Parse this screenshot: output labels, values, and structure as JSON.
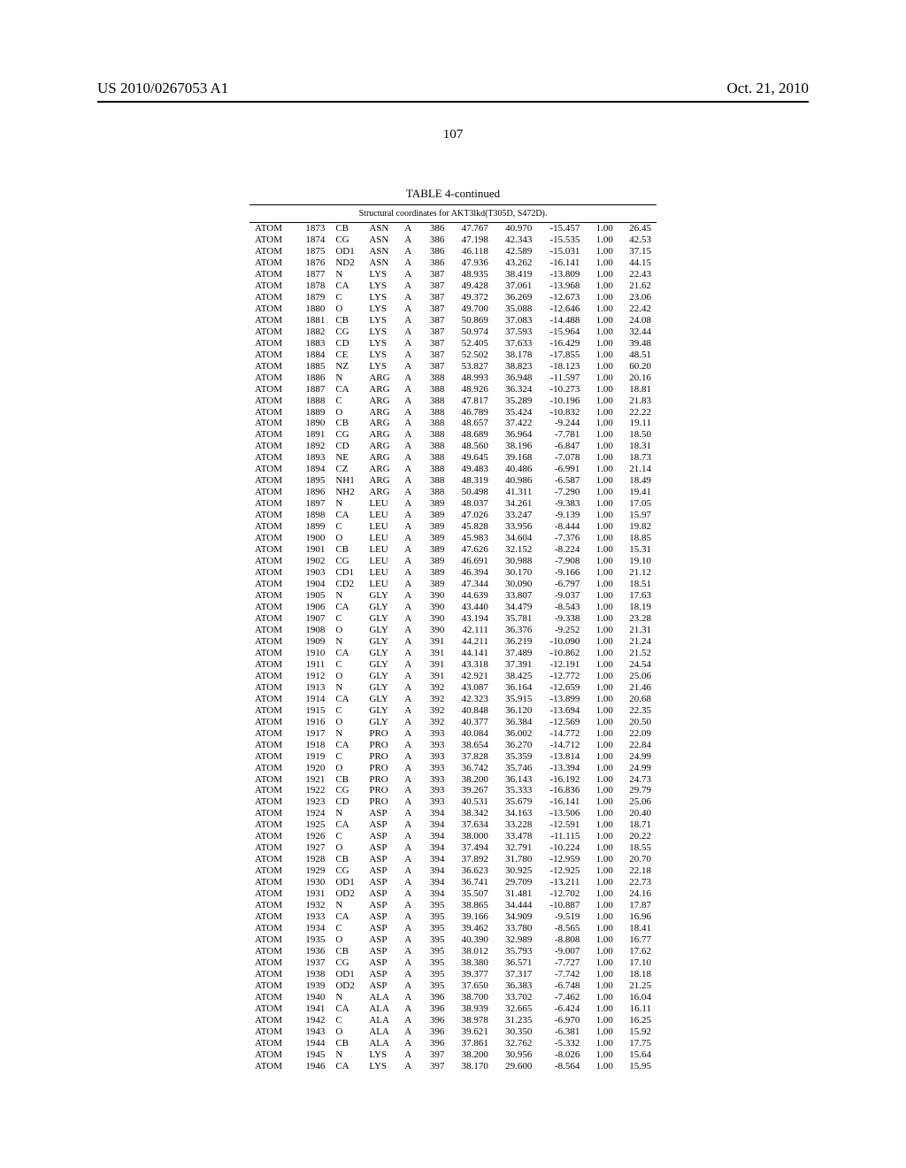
{
  "header": {
    "pub_number": "US 2010/0267053 A1",
    "pub_date": "Oct. 21, 2010"
  },
  "page_number": "107",
  "table": {
    "caption": "TABLE 4-continued",
    "subtitle": "Structural coordinates for AKT3lkd(T305D, S472D).",
    "font_size": 11,
    "colors": {
      "text": "#000000",
      "background": "#ffffff",
      "rule": "#000000"
    },
    "rows": [
      [
        "ATOM",
        "1873",
        "CB",
        "ASN",
        "A",
        "386",
        "47.767",
        "40.970",
        "-15.457",
        "1.00",
        "26.45"
      ],
      [
        "ATOM",
        "1874",
        "CG",
        "ASN",
        "A",
        "386",
        "47.198",
        "42.343",
        "-15.535",
        "1.00",
        "42.53"
      ],
      [
        "ATOM",
        "1875",
        "OD1",
        "ASN",
        "A",
        "386",
        "46.118",
        "42.589",
        "-15.031",
        "1.00",
        "37.15"
      ],
      [
        "ATOM",
        "1876",
        "ND2",
        "ASN",
        "A",
        "386",
        "47.936",
        "43.262",
        "-16.141",
        "1.00",
        "44.15"
      ],
      [
        "ATOM",
        "1877",
        "N",
        "LYS",
        "A",
        "387",
        "48.935",
        "38.419",
        "-13.809",
        "1.00",
        "22.43"
      ],
      [
        "ATOM",
        "1878",
        "CA",
        "LYS",
        "A",
        "387",
        "49.428",
        "37.061",
        "-13.968",
        "1.00",
        "21.62"
      ],
      [
        "ATOM",
        "1879",
        "C",
        "LYS",
        "A",
        "387",
        "49.372",
        "36.269",
        "-12.673",
        "1.00",
        "23.06"
      ],
      [
        "ATOM",
        "1880",
        "O",
        "LYS",
        "A",
        "387",
        "49.700",
        "35.088",
        "-12.646",
        "1.00",
        "22.42"
      ],
      [
        "ATOM",
        "1881",
        "CB",
        "LYS",
        "A",
        "387",
        "50.869",
        "37.083",
        "-14.488",
        "1.00",
        "24.08"
      ],
      [
        "ATOM",
        "1882",
        "CG",
        "LYS",
        "A",
        "387",
        "50.974",
        "37.593",
        "-15.964",
        "1.00",
        "32.44"
      ],
      [
        "ATOM",
        "1883",
        "CD",
        "LYS",
        "A",
        "387",
        "52.405",
        "37.633",
        "-16.429",
        "1.00",
        "39.48"
      ],
      [
        "ATOM",
        "1884",
        "CE",
        "LYS",
        "A",
        "387",
        "52.502",
        "38.178",
        "-17.855",
        "1.00",
        "48.51"
      ],
      [
        "ATOM",
        "1885",
        "NZ",
        "LYS",
        "A",
        "387",
        "53.827",
        "38.823",
        "-18.123",
        "1.00",
        "60.20"
      ],
      [
        "ATOM",
        "1886",
        "N",
        "ARG",
        "A",
        "388",
        "48.993",
        "36.948",
        "-11.597",
        "1.00",
        "20.16"
      ],
      [
        "ATOM",
        "1887",
        "CA",
        "ARG",
        "A",
        "388",
        "48.926",
        "36.324",
        "-10.273",
        "1.00",
        "18.81"
      ],
      [
        "ATOM",
        "1888",
        "C",
        "ARG",
        "A",
        "388",
        "47.817",
        "35.289",
        "-10.196",
        "1.00",
        "21.83"
      ],
      [
        "ATOM",
        "1889",
        "O",
        "ARG",
        "A",
        "388",
        "46.789",
        "35.424",
        "-10.832",
        "1.00",
        "22.22"
      ],
      [
        "ATOM",
        "1890",
        "CB",
        "ARG",
        "A",
        "388",
        "48.657",
        "37.422",
        "-9.244",
        "1.00",
        "19.11"
      ],
      [
        "ATOM",
        "1891",
        "CG",
        "ARG",
        "A",
        "388",
        "48.689",
        "36.964",
        "-7.781",
        "1.00",
        "18.50"
      ],
      [
        "ATOM",
        "1892",
        "CD",
        "ARG",
        "A",
        "388",
        "48.560",
        "38.196",
        "-6.847",
        "1.00",
        "18.31"
      ],
      [
        "ATOM",
        "1893",
        "NE",
        "ARG",
        "A",
        "388",
        "49.645",
        "39.168",
        "-7.078",
        "1.00",
        "18.73"
      ],
      [
        "ATOM",
        "1894",
        "CZ",
        "ARG",
        "A",
        "388",
        "49.483",
        "40.486",
        "-6.991",
        "1.00",
        "21.14"
      ],
      [
        "ATOM",
        "1895",
        "NH1",
        "ARG",
        "A",
        "388",
        "48.319",
        "40.986",
        "-6.587",
        "1.00",
        "18.49"
      ],
      [
        "ATOM",
        "1896",
        "NH2",
        "ARG",
        "A",
        "388",
        "50.498",
        "41.311",
        "-7.290",
        "1.00",
        "19.41"
      ],
      [
        "ATOM",
        "1897",
        "N",
        "LEU",
        "A",
        "389",
        "48.037",
        "34.261",
        "-9.383",
        "1.00",
        "17.05"
      ],
      [
        "ATOM",
        "1898",
        "CA",
        "LEU",
        "A",
        "389",
        "47.026",
        "33.247",
        "-9.139",
        "1.00",
        "15.97"
      ],
      [
        "ATOM",
        "1899",
        "C",
        "LEU",
        "A",
        "389",
        "45.828",
        "33.956",
        "-8.444",
        "1.00",
        "19.82"
      ],
      [
        "ATOM",
        "1900",
        "O",
        "LEU",
        "A",
        "389",
        "45.983",
        "34.604",
        "-7.376",
        "1.00",
        "18.85"
      ],
      [
        "ATOM",
        "1901",
        "CB",
        "LEU",
        "A",
        "389",
        "47.626",
        "32.152",
        "-8.224",
        "1.00",
        "15.31"
      ],
      [
        "ATOM",
        "1902",
        "CG",
        "LEU",
        "A",
        "389",
        "46.691",
        "30.988",
        "-7.908",
        "1.00",
        "19.10"
      ],
      [
        "ATOM",
        "1903",
        "CD1",
        "LEU",
        "A",
        "389",
        "46.394",
        "30.170",
        "-9.166",
        "1.00",
        "21.12"
      ],
      [
        "ATOM",
        "1904",
        "CD2",
        "LEU",
        "A",
        "389",
        "47.344",
        "30.090",
        "-6.797",
        "1.00",
        "18.51"
      ],
      [
        "ATOM",
        "1905",
        "N",
        "GLY",
        "A",
        "390",
        "44.639",
        "33.807",
        "-9.037",
        "1.00",
        "17.63"
      ],
      [
        "ATOM",
        "1906",
        "CA",
        "GLY",
        "A",
        "390",
        "43.440",
        "34.479",
        "-8.543",
        "1.00",
        "18.19"
      ],
      [
        "ATOM",
        "1907",
        "C",
        "GLY",
        "A",
        "390",
        "43.194",
        "35.781",
        "-9.338",
        "1.00",
        "23.28"
      ],
      [
        "ATOM",
        "1908",
        "O",
        "GLY",
        "A",
        "390",
        "42.111",
        "36.376",
        "-9.252",
        "1.00",
        "21.31"
      ],
      [
        "ATOM",
        "1909",
        "N",
        "GLY",
        "A",
        "391",
        "44.211",
        "36.219",
        "-10.090",
        "1.00",
        "21.24"
      ],
      [
        "ATOM",
        "1910",
        "CA",
        "GLY",
        "A",
        "391",
        "44.141",
        "37.489",
        "-10.862",
        "1.00",
        "21.52"
      ],
      [
        "ATOM",
        "1911",
        "C",
        "GLY",
        "A",
        "391",
        "43.318",
        "37.391",
        "-12.191",
        "1.00",
        "24.54"
      ],
      [
        "ATOM",
        "1912",
        "O",
        "GLY",
        "A",
        "391",
        "42.921",
        "38.425",
        "-12.772",
        "1.00",
        "25.06"
      ],
      [
        "ATOM",
        "1913",
        "N",
        "GLY",
        "A",
        "392",
        "43.087",
        "36.164",
        "-12.659",
        "1.00",
        "21.46"
      ],
      [
        "ATOM",
        "1914",
        "CA",
        "GLY",
        "A",
        "392",
        "42.323",
        "35.915",
        "-13.899",
        "1.00",
        "20.68"
      ],
      [
        "ATOM",
        "1915",
        "C",
        "GLY",
        "A",
        "392",
        "40.848",
        "36.120",
        "-13.694",
        "1.00",
        "22.35"
      ],
      [
        "ATOM",
        "1916",
        "O",
        "GLY",
        "A",
        "392",
        "40.377",
        "36.384",
        "-12.569",
        "1.00",
        "20.50"
      ],
      [
        "ATOM",
        "1917",
        "N",
        "PRO",
        "A",
        "393",
        "40.084",
        "36.002",
        "-14.772",
        "1.00",
        "22.09"
      ],
      [
        "ATOM",
        "1918",
        "CA",
        "PRO",
        "A",
        "393",
        "38.654",
        "36.270",
        "-14.712",
        "1.00",
        "22.84"
      ],
      [
        "ATOM",
        "1919",
        "C",
        "PRO",
        "A",
        "393",
        "37.828",
        "35.359",
        "-13.814",
        "1.00",
        "24.99"
      ],
      [
        "ATOM",
        "1920",
        "O",
        "PRO",
        "A",
        "393",
        "36.742",
        "35.746",
        "-13.394",
        "1.00",
        "24.99"
      ],
      [
        "ATOM",
        "1921",
        "CB",
        "PRO",
        "A",
        "393",
        "38.200",
        "36.143",
        "-16.192",
        "1.00",
        "24.73"
      ],
      [
        "ATOM",
        "1922",
        "CG",
        "PRO",
        "A",
        "393",
        "39.267",
        "35.333",
        "-16.836",
        "1.00",
        "29.79"
      ],
      [
        "ATOM",
        "1923",
        "CD",
        "PRO",
        "A",
        "393",
        "40.531",
        "35.679",
        "-16.141",
        "1.00",
        "25.06"
      ],
      [
        "ATOM",
        "1924",
        "N",
        "ASP",
        "A",
        "394",
        "38.342",
        "34.163",
        "-13.506",
        "1.00",
        "20.40"
      ],
      [
        "ATOM",
        "1925",
        "CA",
        "ASP",
        "A",
        "394",
        "37.634",
        "33.228",
        "-12.591",
        "1.00",
        "18.71"
      ],
      [
        "ATOM",
        "1926",
        "C",
        "ASP",
        "A",
        "394",
        "38.000",
        "33.478",
        "-11.115",
        "1.00",
        "20.22"
      ],
      [
        "ATOM",
        "1927",
        "O",
        "ASP",
        "A",
        "394",
        "37.494",
        "32.791",
        "-10.224",
        "1.00",
        "18.55"
      ],
      [
        "ATOM",
        "1928",
        "CB",
        "ASP",
        "A",
        "394",
        "37.892",
        "31.780",
        "-12.959",
        "1.00",
        "20.70"
      ],
      [
        "ATOM",
        "1929",
        "CG",
        "ASP",
        "A",
        "394",
        "36.623",
        "30.925",
        "-12.925",
        "1.00",
        "22.18"
      ],
      [
        "ATOM",
        "1930",
        "OD1",
        "ASP",
        "A",
        "394",
        "36.741",
        "29.709",
        "-13.211",
        "1.00",
        "22.73"
      ],
      [
        "ATOM",
        "1931",
        "OD2",
        "ASP",
        "A",
        "394",
        "35.507",
        "31.481",
        "-12.702",
        "1.00",
        "24.16"
      ],
      [
        "ATOM",
        "1932",
        "N",
        "ASP",
        "A",
        "395",
        "38.865",
        "34.444",
        "-10.887",
        "1.00",
        "17.87"
      ],
      [
        "ATOM",
        "1933",
        "CA",
        "ASP",
        "A",
        "395",
        "39.166",
        "34.909",
        "-9.519",
        "1.00",
        "16.96"
      ],
      [
        "ATOM",
        "1934",
        "C",
        "ASP",
        "A",
        "395",
        "39.462",
        "33.780",
        "-8.565",
        "1.00",
        "18.41"
      ],
      [
        "ATOM",
        "1935",
        "O",
        "ASP",
        "A",
        "395",
        "40.390",
        "32.989",
        "-8.808",
        "1.00",
        "16.77"
      ],
      [
        "ATOM",
        "1936",
        "CB",
        "ASP",
        "A",
        "395",
        "38.012",
        "35.793",
        "-9.007",
        "1.00",
        "17.62"
      ],
      [
        "ATOM",
        "1937",
        "CG",
        "ASP",
        "A",
        "395",
        "38.380",
        "36.571",
        "-7.727",
        "1.00",
        "17.10"
      ],
      [
        "ATOM",
        "1938",
        "OD1",
        "ASP",
        "A",
        "395",
        "39.377",
        "37.317",
        "-7.742",
        "1.00",
        "18.18"
      ],
      [
        "ATOM",
        "1939",
        "OD2",
        "ASP",
        "A",
        "395",
        "37.650",
        "36.383",
        "-6.748",
        "1.00",
        "21.25"
      ],
      [
        "ATOM",
        "1940",
        "N",
        "ALA",
        "A",
        "396",
        "38.700",
        "33.702",
        "-7.462",
        "1.00",
        "16.04"
      ],
      [
        "ATOM",
        "1941",
        "CA",
        "ALA",
        "A",
        "396",
        "38.939",
        "32.665",
        "-6.424",
        "1.00",
        "16.11"
      ],
      [
        "ATOM",
        "1942",
        "C",
        "ALA",
        "A",
        "396",
        "38.978",
        "31.235",
        "-6.970",
        "1.00",
        "16.25"
      ],
      [
        "ATOM",
        "1943",
        "O",
        "ALA",
        "A",
        "396",
        "39.621",
        "30.350",
        "-6.381",
        "1.00",
        "15.92"
      ],
      [
        "ATOM",
        "1944",
        "CB",
        "ALA",
        "A",
        "396",
        "37.861",
        "32.762",
        "-5.332",
        "1.00",
        "17.75"
      ],
      [
        "ATOM",
        "1945",
        "N",
        "LYS",
        "A",
        "397",
        "38.200",
        "30.956",
        "-8.026",
        "1.00",
        "15.64"
      ],
      [
        "ATOM",
        "1946",
        "CA",
        "LYS",
        "A",
        "397",
        "38.170",
        "29.600",
        "-8.564",
        "1.00",
        "15.95"
      ]
    ]
  }
}
